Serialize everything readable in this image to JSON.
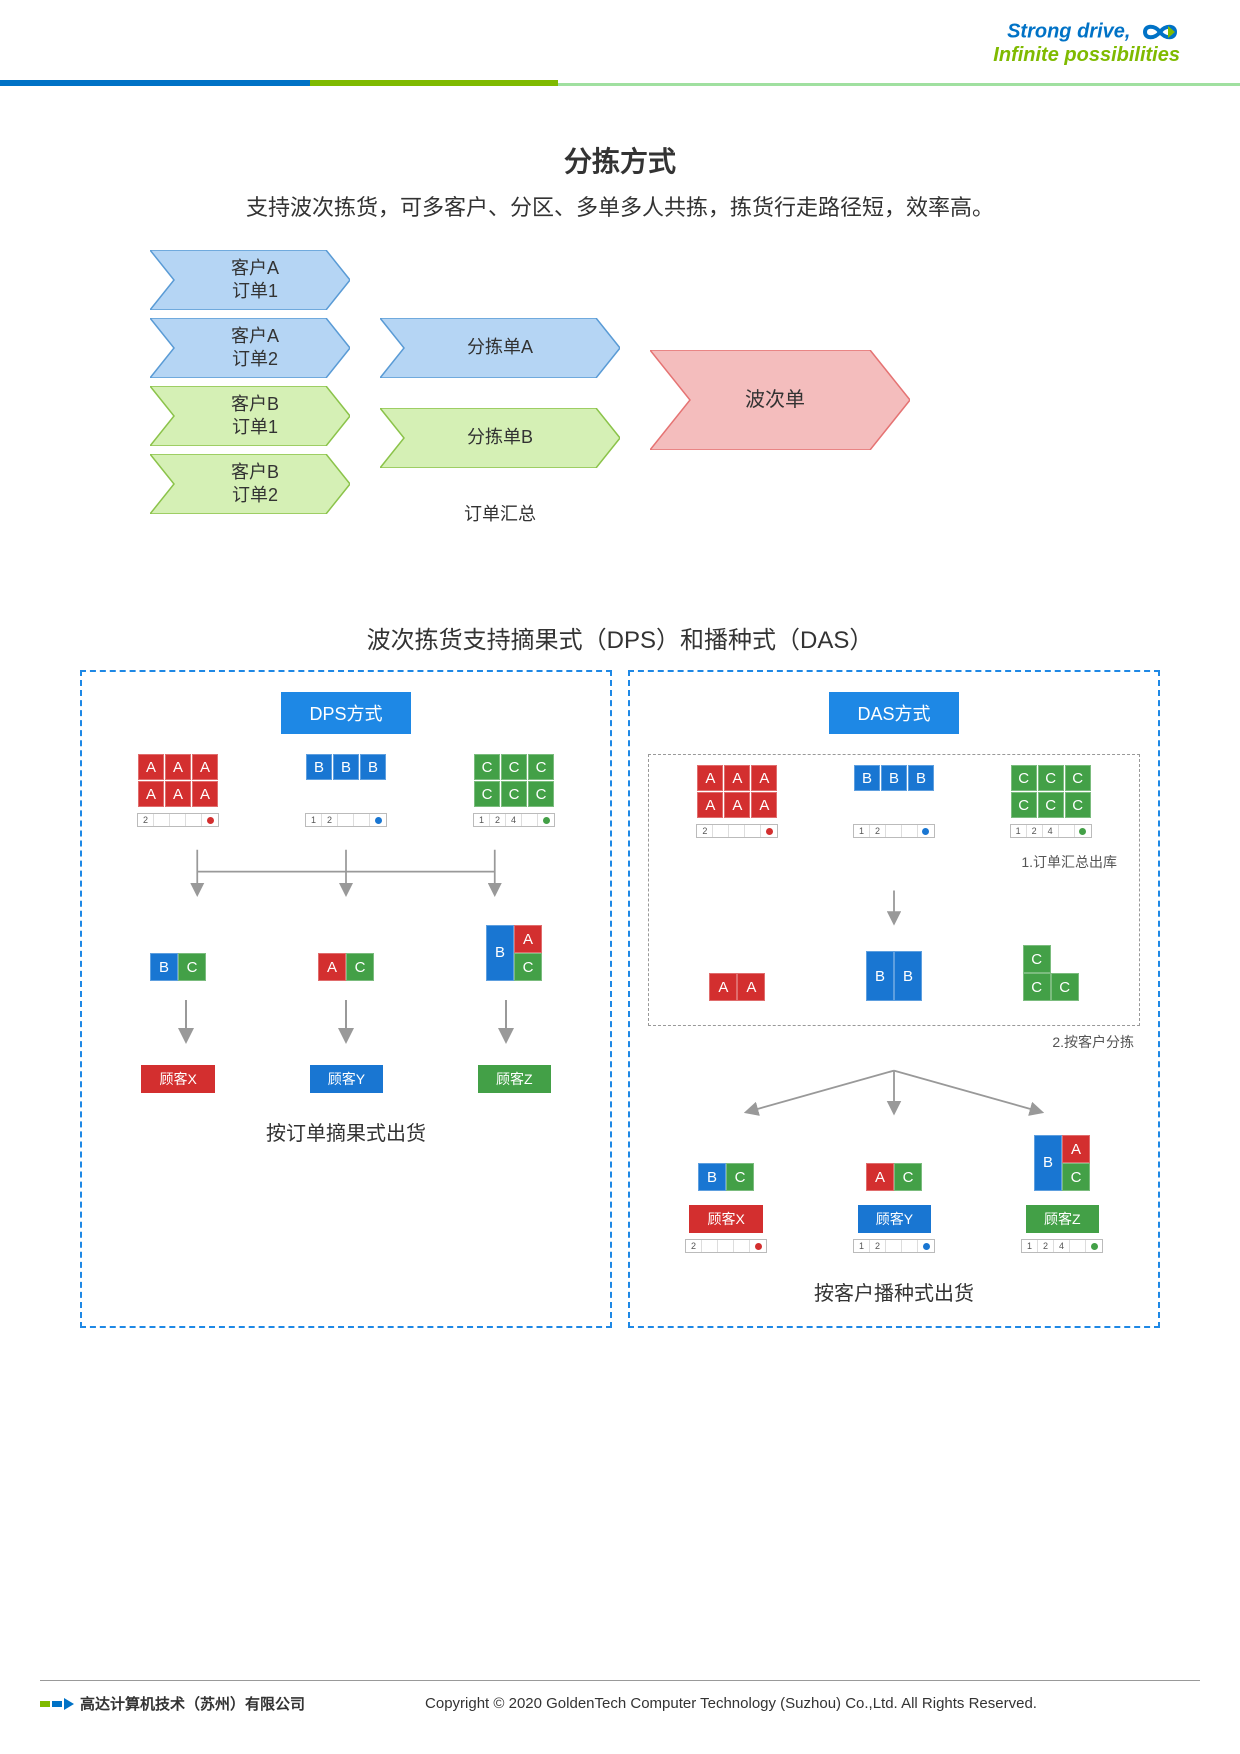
{
  "header": {
    "slogan_line1": "Strong drive,",
    "slogan_line2": "Infinite possibilities",
    "bar_colors": [
      "#0072c6",
      "#7fba00",
      "#a0e0a0"
    ]
  },
  "title": "分拣方式",
  "subtitle": "支持波次拣货，可多客户、分区、多单多人共拣，拣货行走路径短，效率高。",
  "flow": {
    "col1": [
      {
        "label": "客户A\n订单1",
        "fill": "#b5d5f4",
        "stroke": "#5a9bd5"
      },
      {
        "label": "客户A\n订单2",
        "fill": "#b5d5f4",
        "stroke": "#5a9bd5"
      },
      {
        "label": "客户B\n订单1",
        "fill": "#d5f0b5",
        "stroke": "#8bc34a"
      },
      {
        "label": "客户B\n订单2",
        "fill": "#d5f0b5",
        "stroke": "#8bc34a"
      }
    ],
    "col2": [
      {
        "label": "分拣单A",
        "fill": "#b5d5f4",
        "stroke": "#5a9bd5"
      },
      {
        "label": "分拣单B",
        "fill": "#d5f0b5",
        "stroke": "#8bc34a"
      }
    ],
    "col2_caption": "订单汇总",
    "col3": {
      "label": "波次单",
      "fill": "#f4bdbd",
      "stroke": "#e57373"
    }
  },
  "mid_title": "波次拣货支持摘果式（DPS）和播种式（DAS）",
  "colors": {
    "red": "#d32f2f",
    "blue": "#1976d2",
    "green": "#43a047",
    "panel_border": "#1e88e5",
    "arrow": "#999999"
  },
  "dps": {
    "header": "DPS方式",
    "bins": [
      {
        "letter": "A",
        "color": "red",
        "rows": 2
      },
      {
        "letter": "B",
        "color": "blue",
        "rows": 1
      },
      {
        "letter": "C",
        "color": "green",
        "rows": 2
      }
    ],
    "strips": [
      {
        "nums": [
          "2",
          "",
          "",
          ""
        ],
        "dot": "red"
      },
      {
        "nums": [
          "1",
          "2",
          "",
          ""
        ],
        "dot": "blue"
      },
      {
        "nums": [
          "1",
          "2",
          "4",
          ""
        ],
        "dot": "green"
      }
    ],
    "combos": [
      [
        {
          "letter": "B",
          "color": "blue",
          "y": 0
        },
        {
          "letter": "C",
          "color": "green",
          "y": 1
        }
      ],
      [
        {
          "letter": "A",
          "color": "red",
          "y": 1
        },
        {
          "letter": "C",
          "color": "green",
          "y": 1
        }
      ],
      [
        {
          "letter": "B",
          "color": "blue",
          "y": 0,
          "span": 2
        },
        {
          "letter": "A",
          "color": "red",
          "y": 0
        },
        {
          "letter": "C",
          "color": "green",
          "y": 1
        }
      ]
    ],
    "customers": [
      {
        "label": "顾客X",
        "color": "red"
      },
      {
        "label": "顾客Y",
        "color": "blue"
      },
      {
        "label": "顾客Z",
        "color": "green"
      }
    ],
    "footer": "按订单摘果式出货"
  },
  "das": {
    "header": "DAS方式",
    "bins": [
      {
        "letter": "A",
        "color": "red",
        "rows": 2
      },
      {
        "letter": "B",
        "color": "blue",
        "rows": 1
      },
      {
        "letter": "C",
        "color": "green",
        "rows": 2
      }
    ],
    "strips": [
      {
        "nums": [
          "2",
          "",
          "",
          ""
        ],
        "dot": "red"
      },
      {
        "nums": [
          "1",
          "2",
          "",
          ""
        ],
        "dot": "blue"
      },
      {
        "nums": [
          "1",
          "2",
          "4",
          ""
        ],
        "dot": "green"
      }
    ],
    "note1": "1.订单汇总出库",
    "mid": [
      [
        {
          "letter": "A",
          "color": "red"
        },
        {
          "letter": "A",
          "color": "red"
        }
      ],
      [
        {
          "letter": "B",
          "color": "blue"
        },
        {
          "letter": "B",
          "color": "blue"
        }
      ],
      [
        {
          "letter": "C",
          "color": "green",
          "stack": true
        },
        {
          "letter": "C",
          "color": "green"
        },
        {
          "letter": "C",
          "color": "green"
        }
      ]
    ],
    "note2": "2.按客户分拣",
    "combos": [
      [
        {
          "letter": "B",
          "color": "blue",
          "y": 0
        },
        {
          "letter": "C",
          "color": "green",
          "y": 1
        }
      ],
      [
        {
          "letter": "A",
          "color": "red",
          "y": 1
        },
        {
          "letter": "C",
          "color": "green",
          "y": 1
        }
      ],
      [
        {
          "letter": "B",
          "color": "blue",
          "y": 0,
          "span": 2
        },
        {
          "letter": "A",
          "color": "red",
          "y": 0
        },
        {
          "letter": "C",
          "color": "green",
          "y": 1
        }
      ]
    ],
    "customers": [
      {
        "label": "顾客X",
        "color": "red"
      },
      {
        "label": "顾客Y",
        "color": "blue"
      },
      {
        "label": "顾客Z",
        "color": "green"
      }
    ],
    "strips2": [
      {
        "nums": [
          "2",
          "",
          "",
          ""
        ],
        "dot": "red"
      },
      {
        "nums": [
          "1",
          "2",
          "",
          ""
        ],
        "dot": "blue"
      },
      {
        "nums": [
          "1",
          "2",
          "4",
          ""
        ],
        "dot": "green"
      }
    ],
    "footer": "按客户播种式出货"
  },
  "footer": {
    "company": "高达计算机技术（苏州）有限公司",
    "copyright": "Copyright © 2020 GoldenTech Computer Technology (Suzhou) Co.,Ltd.   All Rights Reserved."
  }
}
